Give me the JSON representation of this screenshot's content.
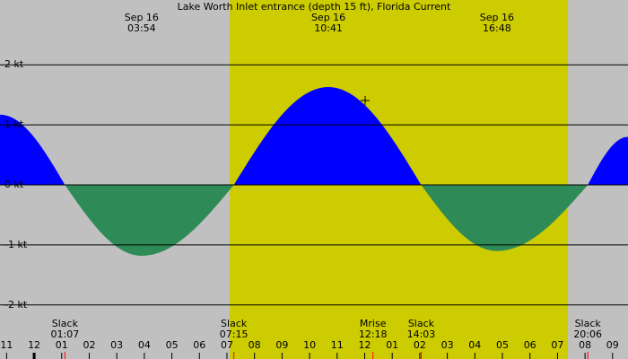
{
  "chart_data": {
    "type": "area",
    "title": "Lake Worth Inlet entrance (depth 15 ft), Florida Current",
    "x": [
      -1.24,
      1.117,
      3.9,
      7.25,
      10.683,
      14.05,
      16.8,
      20.1,
      21.56
    ],
    "series": [
      {
        "name": "Current",
        "color": "#0000ff",
        "negative_color": "#2e8b57",
        "values": [
          1.17,
          0,
          -1.18,
          0,
          1.63,
          0,
          -1.1,
          0,
          0.8
        ]
      }
    ],
    "xlim": [
      -1.24,
      21.56
    ],
    "ylim": [
      -2.9,
      3.08
    ],
    "yticks": [
      {
        "value": 2,
        "label": "2 kt"
      },
      {
        "value": 1,
        "label": "1 kt"
      },
      {
        "value": 0,
        "label": "0 kt"
      },
      {
        "value": -1,
        "label": "-1 kt"
      },
      {
        "value": -2,
        "label": "-2 kt"
      }
    ],
    "xticks": [
      {
        "value": -1,
        "label": "11"
      },
      {
        "value": 0,
        "label": "12"
      },
      {
        "value": 1,
        "label": "01"
      },
      {
        "value": 2,
        "label": "02"
      },
      {
        "value": 3,
        "label": "03"
      },
      {
        "value": 4,
        "label": "04"
      },
      {
        "value": 5,
        "label": "05"
      },
      {
        "value": 6,
        "label": "06"
      },
      {
        "value": 7,
        "label": "07"
      },
      {
        "value": 8,
        "label": "08"
      },
      {
        "value": 9,
        "label": "09"
      },
      {
        "value": 10,
        "label": "10"
      },
      {
        "value": 11,
        "label": "11"
      },
      {
        "value": 12,
        "label": "12"
      },
      {
        "value": 13,
        "label": "01"
      },
      {
        "value": 14,
        "label": "02"
      },
      {
        "value": 15,
        "label": "03"
      },
      {
        "value": 16,
        "label": "04"
      },
      {
        "value": 17,
        "label": "05"
      },
      {
        "value": 18,
        "label": "06"
      },
      {
        "value": 19,
        "label": "07"
      },
      {
        "value": 20,
        "label": "08"
      },
      {
        "value": 21,
        "label": "09"
      }
    ],
    "daylight": [
      7.1,
      19.38
    ],
    "background_color": "#c0c0c0",
    "daylight_color": "#cccc00",
    "peaks": [
      {
        "date": "Sep 16",
        "time": "03:54",
        "x": 3.9
      },
      {
        "date": "Sep 16",
        "time": "10:41",
        "x": 10.683
      },
      {
        "date": "Sep 16",
        "time": "16:48",
        "x": 16.8
      }
    ],
    "events": [
      {
        "label": "Slack",
        "time": "01:07",
        "x": 1.117
      },
      {
        "label": "Slack",
        "time": "07:15",
        "x": 7.25
      },
      {
        "label": "Mrise",
        "time": "12:18",
        "x": 12.3
      },
      {
        "label": "Slack",
        "time": "14:03",
        "x": 14.05
      },
      {
        "label": "Slack",
        "time": "20:06",
        "x": 20.1
      }
    ]
  }
}
